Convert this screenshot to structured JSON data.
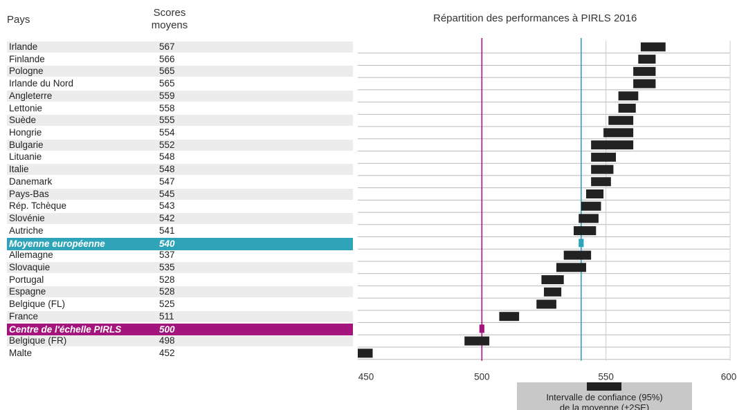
{
  "header": {
    "country_label": "Pays",
    "score_label_line1": "Scores",
    "score_label_line2": "moyens",
    "title": "Répartition des performances à PIRLS 2016"
  },
  "colors": {
    "bar": "#222222",
    "row_alt": "#ececec",
    "european_mean": "#2fa4b8",
    "pirls_center": "#a3157c",
    "gridline": "#cccccc"
  },
  "chart_data": {
    "type": "interval",
    "title": "Répartition des performances à PIRLS 2016",
    "xlim": [
      450,
      600
    ],
    "xticks": [
      450,
      500,
      550,
      600
    ],
    "grid": true,
    "reference_lines": [
      {
        "name": "Moyenne européenne",
        "value": 540,
        "color": "#2fa4b8"
      },
      {
        "name": "Centre de l'échelle PIRLS",
        "value": 500,
        "color": "#a3157c"
      }
    ],
    "rows": [
      {
        "country": "Irlande",
        "score": "567",
        "low": 564,
        "high": 574
      },
      {
        "country": "Finlande",
        "score": "566",
        "low": 563,
        "high": 570
      },
      {
        "country": "Pologne",
        "score": "565",
        "low": 561,
        "high": 570
      },
      {
        "country": "Irlande du Nord",
        "score": "565",
        "low": 561,
        "high": 570
      },
      {
        "country": "Angleterre",
        "score": "559",
        "low": 555,
        "high": 563
      },
      {
        "country": "Lettonie",
        "score": "558",
        "low": 555,
        "high": 562
      },
      {
        "country": "Suède",
        "score": "555",
        "low": 551,
        "high": 561
      },
      {
        "country": "Hongrie",
        "score": "554",
        "low": 549,
        "high": 561
      },
      {
        "country": "Bulgarie",
        "score": "552",
        "low": 544,
        "high": 561
      },
      {
        "country": "Lituanie",
        "score": "548",
        "low": 544,
        "high": 554
      },
      {
        "country": "Italie",
        "score": "548",
        "low": 544,
        "high": 553
      },
      {
        "country": "Danemark",
        "score": "547",
        "low": 544,
        "high": 552
      },
      {
        "country": "Pays-Bas",
        "score": "545",
        "low": 542,
        "high": 549
      },
      {
        "country": "Rép. Tchèque",
        "score": "543",
        "low": 540,
        "high": 548
      },
      {
        "country": "Slovénie",
        "score": "542",
        "low": 539,
        "high": 547
      },
      {
        "country": "Autriche",
        "score": "541",
        "low": 537,
        "high": 546
      },
      {
        "country": "Moyenne européenne",
        "score": "540",
        "low": 539,
        "high": 541,
        "highlight": "european"
      },
      {
        "country": "Allemagne",
        "score": "537",
        "low": 533,
        "high": 544
      },
      {
        "country": "Slovaquie",
        "score": "535",
        "low": 530,
        "high": 542
      },
      {
        "country": "Portugal",
        "score": "528",
        "low": 524,
        "high": 533
      },
      {
        "country": "Espagne",
        "score": "528",
        "low": 525,
        "high": 532
      },
      {
        "country": "Belgique (FL)",
        "score": "525",
        "low": 522,
        "high": 530
      },
      {
        "country": "France",
        "score": "511",
        "low": 507,
        "high": 515
      },
      {
        "country": "Centre de l'échelle PIRLS",
        "score": "500",
        "low": 499,
        "high": 501,
        "highlight": "center"
      },
      {
        "country": "Belgique (FR)",
        "score": "498",
        "low": 493,
        "high": 503
      },
      {
        "country": "Malte",
        "score": "452",
        "low": 450,
        "high": 456
      }
    ]
  },
  "legend": {
    "text_line1": "Intervalle de confiance (95%)",
    "text_line2": "de la moyenne (±2SE)"
  }
}
